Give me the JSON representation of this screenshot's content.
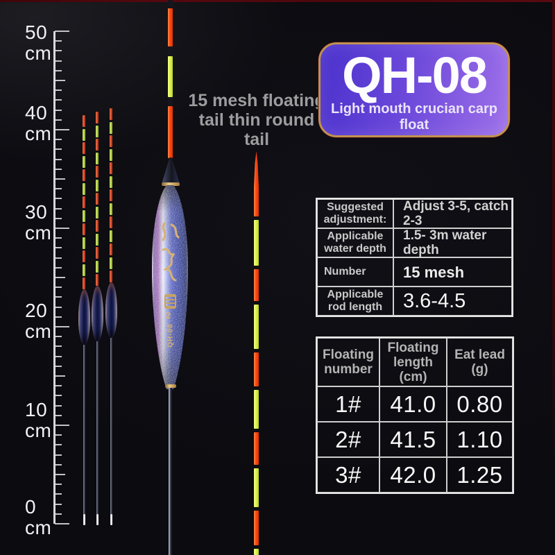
{
  "badge": {
    "model": "QH-08",
    "subtitle": "Light mouth crucian carp float",
    "gradient_start": "#4a31cc",
    "gradient_end": "#9e70e9",
    "border_color": "#c0934f"
  },
  "annotation": {
    "lines": [
      "15 mesh floating",
      "tail thin round",
      "tail"
    ]
  },
  "ruler": {
    "unit": "cm",
    "labels": [
      "50",
      "40",
      "30",
      "20",
      "10",
      "0"
    ]
  },
  "big_float": {
    "vertical_model": "QH-08",
    "size_number": "2"
  },
  "spec_table": {
    "rows": [
      {
        "label": "Suggested adjustment:",
        "value": "Adjust 3-5, catch 2-3"
      },
      {
        "label": "Applicable water depth",
        "value": "1.5- 3m water depth"
      },
      {
        "label": "Number",
        "value": "15 mesh"
      },
      {
        "label": "Applicable rod length",
        "value": "3.6-4.5"
      }
    ]
  },
  "size_table": {
    "headers": [
      "Floating number",
      "Floating length (cm)",
      "Eat lead (g)"
    ],
    "rows": [
      [
        "1#",
        "41.0",
        "0.80"
      ],
      [
        "2#",
        "41.5",
        "1.10"
      ],
      [
        "3#",
        "42.0",
        "1.25"
      ]
    ]
  },
  "colors": {
    "segment_orange": "#ff4512",
    "segment_yellow": "#dff152",
    "tail_red": "#d84625",
    "tail_green": "#b3cf45",
    "gold": "#d8b272",
    "dark_separator": "#15161d"
  }
}
